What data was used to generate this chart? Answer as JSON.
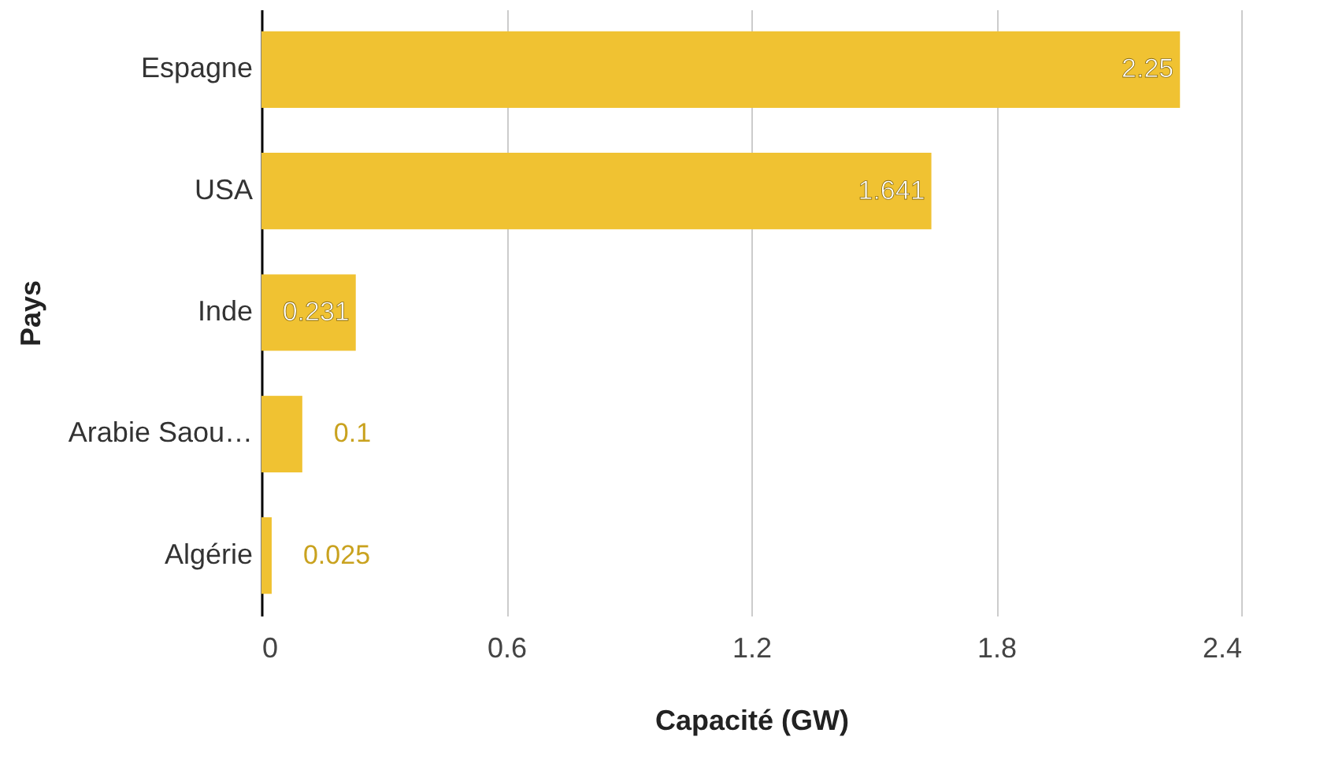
{
  "chart_data": {
    "type": "bar",
    "orientation": "horizontal",
    "xlabel": "Capacité (GW)",
    "ylabel": "Pays",
    "categories": [
      "Espagne",
      "USA",
      "Inde",
      "Arabie Saou…",
      "Algérie"
    ],
    "values": [
      2.25,
      1.641,
      0.231,
      0.1,
      0.025
    ],
    "color": "#f0c232",
    "xlim": [
      0,
      2.4
    ],
    "xticks": [
      0,
      0.6,
      1.2,
      1.8,
      2.4
    ],
    "grid": "x",
    "data_labels": true
  }
}
